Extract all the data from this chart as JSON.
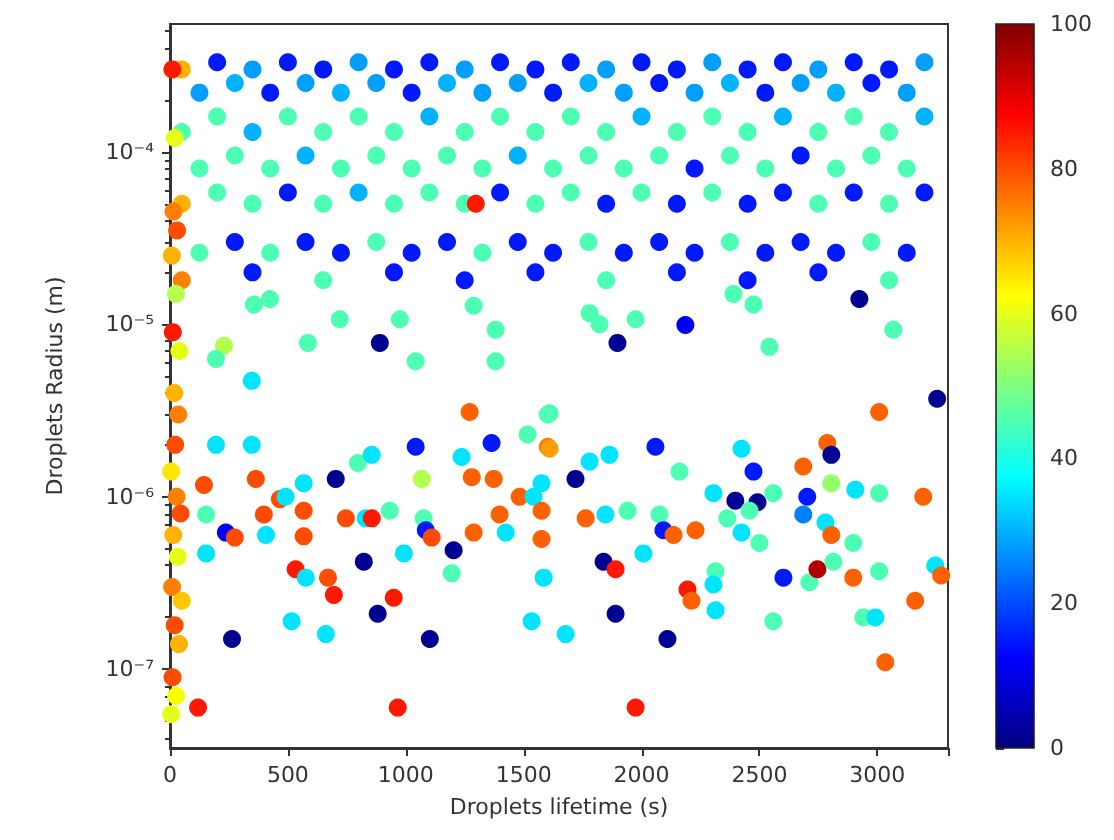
{
  "chart_data": {
    "type": "scatter",
    "xlabel": "Droplets lifetime (s)",
    "ylabel": "Droplets Radius (m)",
    "log": "y",
    "marker": "circle",
    "xlim": [
      0,
      3300
    ],
    "xticks": [
      0,
      500,
      1000,
      1500,
      2000,
      2500,
      3000
    ],
    "ylim": [
      3.5e-08,
      0.00055
    ],
    "yticks": [
      {
        "value": 4e-08,
        "label": null
      },
      {
        "value": 5e-08,
        "label": null
      },
      {
        "value": 6e-08,
        "label": null
      },
      {
        "value": 7e-08,
        "label": null
      },
      {
        "value": 8e-08,
        "label": null
      },
      {
        "value": 9e-08,
        "label": null
      },
      {
        "value": 1e-07,
        "label": "10⁻⁷"
      },
      {
        "value": 2e-07,
        "label": null
      },
      {
        "value": 3e-07,
        "label": null
      },
      {
        "value": 4e-07,
        "label": null
      },
      {
        "value": 5e-07,
        "label": null
      },
      {
        "value": 6e-07,
        "label": null
      },
      {
        "value": 7e-07,
        "label": null
      },
      {
        "value": 8e-07,
        "label": null
      },
      {
        "value": 9e-07,
        "label": null
      },
      {
        "value": 1e-06,
        "label": "10⁻⁶"
      },
      {
        "value": 2e-06,
        "label": null
      },
      {
        "value": 3e-06,
        "label": null
      },
      {
        "value": 4e-06,
        "label": null
      },
      {
        "value": 5e-06,
        "label": null
      },
      {
        "value": 6e-06,
        "label": null
      },
      {
        "value": 7e-06,
        "label": null
      },
      {
        "value": 8e-06,
        "label": null
      },
      {
        "value": 9e-06,
        "label": null
      },
      {
        "value": 1e-05,
        "label": "10⁻⁵"
      },
      {
        "value": 2e-05,
        "label": null
      },
      {
        "value": 3e-05,
        "label": null
      },
      {
        "value": 4e-05,
        "label": null
      },
      {
        "value": 5e-05,
        "label": null
      },
      {
        "value": 6e-05,
        "label": null
      },
      {
        "value": 7e-05,
        "label": null
      },
      {
        "value": 8e-05,
        "label": null
      },
      {
        "value": 9e-05,
        "label": null
      },
      {
        "value": 0.0001,
        "label": "10⁻⁴"
      },
      {
        "value": 0.0002,
        "label": null
      },
      {
        "value": 0.0003,
        "label": null
      },
      {
        "value": 0.0004,
        "label": null
      },
      {
        "value": 0.0005,
        "label": null
      }
    ],
    "clim": [
      0,
      100
    ],
    "cticks": [
      0,
      20,
      40,
      60,
      80,
      100
    ],
    "x": [
      50,
      200,
      350,
      500,
      650,
      800,
      950,
      1100,
      1250,
      1400,
      1550,
      1700,
      1850,
      2000,
      2150,
      2300,
      2450,
      2600,
      2750,
      2900,
      3050,
      3200,
      125,
      275,
      425,
      575,
      725,
      875,
      1025,
      1175,
      1325,
      1475,
      1625,
      1775,
      1925,
      2075,
      2225,
      2375,
      2525,
      2675,
      2825,
      2975,
      3125,
      50,
      200,
      350,
      500,
      650,
      800,
      950,
      1100,
      1250,
      1400,
      1550,
      1700,
      1850,
      2000,
      2150,
      2300,
      2450,
      2600,
      2750,
      2900,
      3050,
      3200,
      125,
      275,
      425,
      575,
      725,
      875,
      1025,
      1175,
      1325,
      1475,
      1625,
      1775,
      1925,
      2075,
      2225,
      2375,
      2525,
      2675,
      2825,
      2975,
      3125,
      50,
      200,
      350,
      500,
      650,
      800,
      950,
      1100,
      1250,
      1400,
      1550,
      1700,
      1850,
      2000,
      2150,
      2300,
      2450,
      2600,
      2750,
      2900,
      3050,
      3200,
      125,
      275,
      425,
      575,
      725,
      875,
      1025,
      1175,
      1325,
      1475,
      1625,
      1775,
      1925,
      2075,
      2225,
      2375,
      2525,
      2675,
      2825,
      2975,
      3125,
      50,
      350,
      650,
      950,
      1250,
      1550,
      1850,
      2150,
      2450,
      2750,
      3050,
      10,
      20,
      15,
      30,
      8,
      25,
      12,
      40,
      18,
      35,
      22,
      5,
      28,
      45,
      14,
      33,
      9,
      50,
      20,
      38,
      11,
      26,
      5,
      1297,
      890,
      585,
      356,
      424,
      229,
      195,
      347,
      720,
      975,
      1042,
      1288,
      1381,
      1381,
      1780,
      1822,
      1898,
      1975,
      2186,
      2475,
      2542,
      2924,
      3068,
      2390,
      195,
      347,
      144,
      364,
      398,
      237,
      275,
      407,
      153,
      153,
      466,
      490,
      567,
      567,
      567,
      533,
      576,
      670,
      695,
      516,
      661,
      263,
      119,
      703,
      797,
      856,
      746,
      830,
      856,
      822,
      932,
      881,
      949,
      966,
      992,
      1042,
      1068,
      1076,
      1085,
      1110,
      1203,
      1195,
      1102,
      1237,
      1271,
      1280,
      1288,
      1364,
      1373,
      1398,
      1424,
      1517,
      1602,
      1602,
      1483,
      1542,
      1576,
      1576,
      1576,
      1585,
      1534,
      1610,
      1610,
      1720,
      1780,
      1864,
      2059,
      2161,
      1763,
      1847,
      1941,
      1839,
      1890,
      1890,
      1678,
      2008,
      2076,
      2093,
      2136,
      2229,
      2110,
      1975,
      2195,
      2212,
      2305,
      2314,
      2305,
      2314,
      2364,
      2398,
      2424,
      2424,
      2475,
      2492,
      2458,
      2500,
      2559,
      2559,
      2602,
      2686,
      2703,
      2686,
      2712,
      2746,
      2788,
      2805,
      2805,
      2780,
      2805,
      2814,
      2898,
      2898,
      2907,
      2941,
      2992,
      3008,
      3008,
      3008,
      3034,
      3195,
      3161,
      3246,
      3271,
      3254
    ],
    "values": [
      0.0003,
      0.00033,
      0.0003,
      0.00033,
      0.0003,
      0.00033,
      0.0003,
      0.00033,
      0.0003,
      0.00033,
      0.0003,
      0.00033,
      0.0003,
      0.00033,
      0.0003,
      0.00033,
      0.0003,
      0.00033,
      0.0003,
      0.00033,
      0.0003,
      0.00033,
      0.00022,
      0.00025,
      0.00022,
      0.00025,
      0.00022,
      0.00025,
      0.00022,
      0.00025,
      0.00022,
      0.00025,
      0.00022,
      0.00025,
      0.00022,
      0.00025,
      0.00022,
      0.00025,
      0.00022,
      0.00025,
      0.00022,
      0.00025,
      0.00022,
      0.00013,
      0.00016,
      0.00013,
      0.00016,
      0.00013,
      0.00016,
      0.00013,
      0.00016,
      0.00013,
      0.00016,
      0.00013,
      0.00016,
      0.00013,
      0.00016,
      0.00013,
      0.00016,
      0.00013,
      0.00016,
      0.00013,
      0.00016,
      0.00013,
      0.00016,
      8e-05,
      9.5e-05,
      8e-05,
      9.5e-05,
      8e-05,
      9.5e-05,
      8e-05,
      9.5e-05,
      8e-05,
      9.5e-05,
      8e-05,
      9.5e-05,
      8e-05,
      9.5e-05,
      8e-05,
      9.5e-05,
      8e-05,
      9.5e-05,
      8e-05,
      9.5e-05,
      8e-05,
      5e-05,
      5.8e-05,
      5e-05,
      5.8e-05,
      5e-05,
      5.8e-05,
      5e-05,
      5.8e-05,
      5e-05,
      5.8e-05,
      5e-05,
      5.8e-05,
      5e-05,
      5.8e-05,
      5e-05,
      5.8e-05,
      5e-05,
      5.8e-05,
      5e-05,
      5.8e-05,
      5e-05,
      5.8e-05,
      2.6e-05,
      3e-05,
      2.6e-05,
      3e-05,
      2.6e-05,
      3e-05,
      2.6e-05,
      3e-05,
      2.6e-05,
      3e-05,
      2.6e-05,
      3e-05,
      2.6e-05,
      3e-05,
      2.6e-05,
      3e-05,
      2.6e-05,
      3e-05,
      2.6e-05,
      3e-05,
      2.6e-05,
      1.8e-05,
      2e-05,
      1.8e-05,
      2e-05,
      1.8e-05,
      2e-05,
      1.8e-05,
      2e-05,
      1.8e-05,
      2e-05,
      1.8e-05,
      0.0003,
      0.00012,
      4.5e-05,
      3.5e-05,
      2.5e-05,
      1.5e-05,
      9e-06,
      7e-06,
      4e-06,
      3e-06,
      2e-06,
      1.4e-06,
      1e-06,
      8e-07,
      6e-07,
      4.5e-07,
      3e-07,
      2.5e-07,
      1.8e-07,
      1.4e-07,
      9e-08,
      7e-08,
      5.5e-08,
      5e-05,
      7.8e-06,
      7.8e-06,
      1.3e-05,
      1.4e-05,
      7.5e-06,
      6.3e-06,
      4.7e-06,
      1.07e-05,
      1.07e-05,
      6.1e-06,
      1.28e-05,
      9.3e-06,
      6.1e-06,
      1.16e-05,
      1e-05,
      7.8e-06,
      1.07e-05,
      9.9e-06,
      1.3e-05,
      7.4e-06,
      1.4e-05,
      9.3e-06,
      1.5e-05,
      2e-06,
      2e-06,
      1.17e-06,
      1.27e-06,
      7.9e-07,
      6.2e-07,
      5.8e-07,
      6e-07,
      7.9e-07,
      4.7e-07,
      9.7e-07,
      1e-06,
      1.2e-06,
      8.3e-07,
      5.9e-07,
      3.8e-07,
      3.4e-07,
      3.4e-07,
      2.7e-07,
      1.9e-07,
      1.6e-07,
      1.5e-07,
      6e-08,
      1.27e-06,
      1.57e-06,
      1.75e-06,
      7.5e-07,
      7.5e-07,
      7.5e-07,
      4.2e-07,
      8.3e-07,
      2.1e-07,
      2.6e-07,
      6e-08,
      4.7e-07,
      1.95e-06,
      1.27e-06,
      7.5e-07,
      6.4e-07,
      5.8e-07,
      4.9e-07,
      3.6e-07,
      1.5e-07,
      1.7e-06,
      3.1e-06,
      1.3e-06,
      6.2e-07,
      2.05e-06,
      1.27e-06,
      7.9e-07,
      6.2e-07,
      2.3e-06,
      1.95e-06,
      3e-06,
      1e-06,
      1e-06,
      1.2e-06,
      8.3e-07,
      5.7e-07,
      3.4e-07,
      1.9e-07,
      3.05e-06,
      1.9e-06,
      1.27e-06,
      1.6e-06,
      1.75e-06,
      1.95e-06,
      1.4e-06,
      7.5e-07,
      7.9e-07,
      8.3e-07,
      4.2e-07,
      3.8e-07,
      2.1e-07,
      1.6e-07,
      4.7e-07,
      7.9e-07,
      6.4e-07,
      6e-07,
      6.4e-07,
      1.5e-07,
      6e-08,
      2.9e-07,
      2.5e-07,
      1.05e-06,
      3.7e-07,
      3.1e-07,
      2.2e-07,
      7.5e-07,
      9.5e-07,
      1.9e-06,
      6.2e-07,
      1.4e-06,
      9.3e-07,
      8.3e-07,
      5.4e-07,
      1.05e-06,
      1.9e-07,
      3.4e-07,
      1.5e-06,
      1e-06,
      7.9e-07,
      3.2e-07,
      3.8e-07,
      2.05e-06,
      1.75e-06,
      1.2e-06,
      7.1e-07,
      6e-07,
      4.2e-07,
      5.4e-07,
      3.4e-07,
      1.1e-06,
      2e-07,
      2e-07,
      1.05e-06,
      3.7e-07,
      3.1e-06,
      1.1e-07,
      1e-06,
      2.5e-07,
      4e-07,
      3.5e-07,
      3.7e-06
    ],
    "cvalues": [
      70,
      15,
      28,
      15,
      15,
      28,
      15,
      15,
      28,
      15,
      15,
      15,
      28,
      15,
      15,
      28,
      15,
      15,
      28,
      15,
      15,
      28,
      28,
      30,
      15,
      28,
      30,
      28,
      15,
      30,
      28,
      28,
      15,
      30,
      28,
      15,
      28,
      30,
      15,
      28,
      30,
      15,
      28,
      45,
      45,
      30,
      45,
      45,
      45,
      45,
      30,
      45,
      45,
      45,
      45,
      45,
      30,
      45,
      45,
      45,
      30,
      45,
      45,
      45,
      30,
      45,
      45,
      45,
      30,
      45,
      45,
      45,
      45,
      45,
      30,
      45,
      45,
      45,
      45,
      15,
      45,
      45,
      15,
      45,
      45,
      45,
      70,
      45,
      45,
      15,
      45,
      30,
      45,
      45,
      45,
      15,
      45,
      45,
      15,
      45,
      15,
      45,
      15,
      15,
      45,
      15,
      45,
      15,
      45,
      15,
      45,
      15,
      15,
      45,
      15,
      15,
      45,
      15,
      15,
      45,
      15,
      15,
      15,
      45,
      15,
      15,
      15,
      45,
      15,
      75,
      15,
      45,
      15,
      15,
      15,
      45,
      15,
      15,
      15,
      45,
      85,
      60,
      75,
      80,
      70,
      55,
      85,
      60,
      70,
      75,
      80,
      65,
      75,
      80,
      70,
      60,
      75,
      68,
      80,
      70,
      80,
      62,
      60,
      85,
      2,
      45,
      45,
      45,
      55,
      45,
      35,
      45,
      45,
      45,
      45,
      45,
      45,
      45,
      45,
      2,
      45,
      12,
      45,
      45,
      2,
      45,
      45,
      35,
      35,
      80,
      80,
      80,
      12,
      80,
      35,
      45,
      35,
      80,
      35,
      35,
      80,
      80,
      85,
      35,
      80,
      85,
      35,
      35,
      2,
      85,
      2,
      45,
      35,
      80,
      35,
      85,
      2,
      45,
      2,
      85,
      85,
      35,
      15,
      55,
      45,
      15,
      80,
      2,
      45,
      2,
      35,
      78,
      78,
      78,
      15,
      78,
      78,
      35,
      45,
      75,
      45,
      78,
      35,
      35,
      78,
      78,
      35,
      35,
      45,
      72,
      2,
      35,
      35,
      15,
      45,
      78,
      35,
      45,
      2,
      85,
      2,
      35,
      35,
      45,
      15,
      78,
      78,
      2,
      85,
      85,
      78,
      35,
      45,
      35,
      35,
      45,
      2,
      35,
      35,
      15,
      2,
      45,
      45,
      45,
      45,
      15,
      78,
      15,
      25,
      45,
      95,
      78,
      2,
      52,
      35,
      78,
      45,
      45,
      78,
      35,
      45,
      35,
      45,
      45,
      78,
      78,
      78,
      78,
      35,
      78,
      2
    ]
  }
}
